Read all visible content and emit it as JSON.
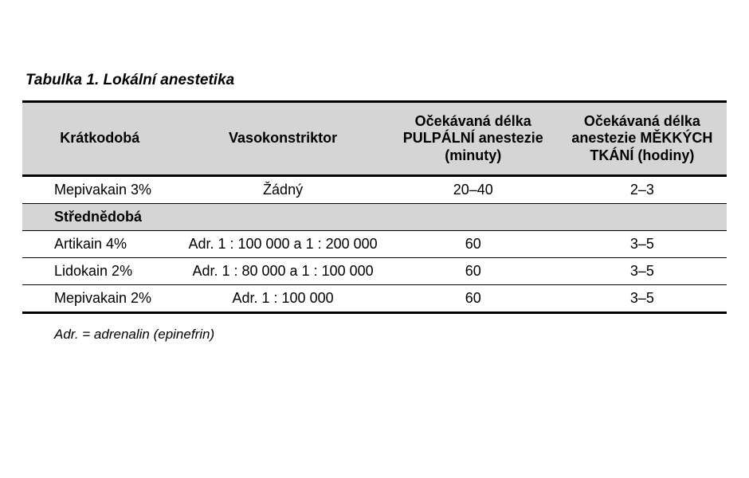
{
  "title": "Tabulka 1. Lokální anestetika",
  "columns": {
    "c1": "Krátkodobá",
    "c2": "Vasokonstriktor",
    "c3": "Očekávaná délka PULPÁLNÍ anestezie (minuty)",
    "c4": "Očekávaná délka anestezie MĚKKÝCH TKÁNÍ (hodiny)"
  },
  "rows": {
    "r1": {
      "name": "Mepivakain 3%",
      "vaso": "Žádný",
      "pulp": "20–40",
      "soft": "2–3"
    },
    "sub": {
      "label": "Střednědobá"
    },
    "r2": {
      "name": "Artikain 4%",
      "vaso": "Adr. 1 : 100 000 a 1 : 200 000",
      "pulp": "60",
      "soft": "3–5"
    },
    "r3": {
      "name": "Lidokain 2%",
      "vaso": "Adr. 1 : 80 000 a 1 : 100 000",
      "pulp": "60",
      "soft": "3–5"
    },
    "r4": {
      "name": "Mepivakain 2%",
      "vaso": "Adr. 1 : 100 000",
      "pulp": "60",
      "soft": "3–5"
    }
  },
  "footnote": "Adr. = adrenalin (epinefrin)",
  "style": {
    "header_bg": "#d5d5d5",
    "rule_heavy": "#000000",
    "rule_light": "#000000",
    "font_size_body": 18,
    "font_size_title": 19,
    "font_size_footnote": 17
  }
}
